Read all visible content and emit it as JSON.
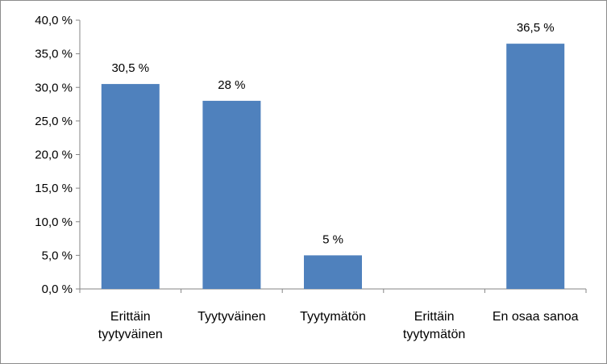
{
  "chart_data": {
    "type": "bar",
    "title": "",
    "xlabel": "",
    "ylabel": "",
    "categories": [
      [
        "Erittäin",
        "tyytyväinen"
      ],
      [
        "Tyytyväinen"
      ],
      [
        "Tyytymätön"
      ],
      [
        "Erittäin",
        "tyytymätön"
      ],
      [
        "En osaa sanoa"
      ]
    ],
    "values": [
      30.5,
      28,
      5,
      0,
      36.5
    ],
    "data_labels": [
      "30,5 %",
      "28 %",
      "5 %",
      "",
      "36,5 %"
    ],
    "ylim": [
      0,
      40
    ],
    "y_ticks": [
      0,
      5,
      10,
      15,
      20,
      25,
      30,
      35,
      40
    ],
    "y_tick_labels": [
      "0,0 %",
      "5,0 %",
      "10,0 %",
      "15,0 %",
      "20,0 %",
      "25,0 %",
      "30,0 %",
      "35,0 %",
      "40,0 %"
    ],
    "grid": false,
    "legend": "none",
    "bar_color": "#4f81bd",
    "axis_color": "#868686"
  }
}
